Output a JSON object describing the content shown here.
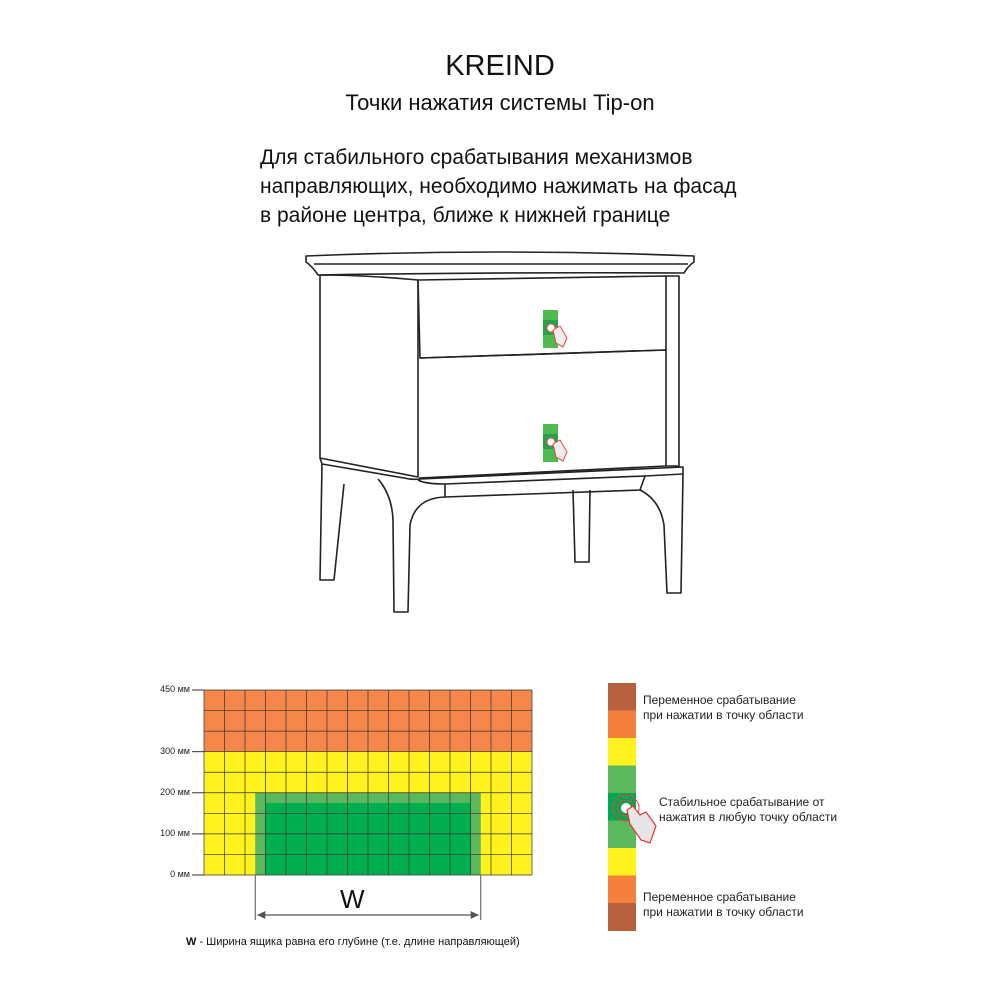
{
  "header": {
    "brand": "KREIND",
    "subtitle": "Точки нажатия системы Tip-on",
    "description": [
      "Для стабильного срабатывания механизмов",
      "направляющих, необходимо нажимать на фасад",
      "в районе центра, ближе к нижней границе"
    ]
  },
  "zone_diagram": {
    "y_labels": [
      "450 мм",
      "300 мм",
      "200 мм",
      "100 мм",
      "0 мм"
    ],
    "columns": 16,
    "zones": [
      {
        "name": "variable",
        "from_mm": 300,
        "to_mm": 450,
        "color": "#f5874a"
      },
      {
        "name": "transition",
        "from_mm": 0,
        "to_mm": 300,
        "color": "#fff21f"
      },
      {
        "name": "stable-outer",
        "from_mm": 0,
        "to_mm": 200,
        "color": "#5cb85c"
      },
      {
        "name": "stable-inner",
        "from_mm": 0,
        "to_mm": 175,
        "color": "#00b050"
      }
    ],
    "width_symbol": "W",
    "footnote_symbol": "W",
    "footnote_text": " - Ширина ящика равна его глубине (т.е. длине направляющей)"
  },
  "legend": {
    "colors": [
      "#b8613e",
      "#f5803e",
      "#fff21f",
      "#5cb85c",
      "#00a651",
      "#5cb85c",
      "#fff21f",
      "#f5803e",
      "#b8613e"
    ],
    "top_label": [
      "Переменное срабатывание",
      "при нажатии в точку области"
    ],
    "middle_label": [
      "Стабильное срабатывание от",
      "нажатия в любую точку области"
    ],
    "bottom_label": [
      "Переменное срабатывание",
      "при нажатии в точку области"
    ]
  }
}
